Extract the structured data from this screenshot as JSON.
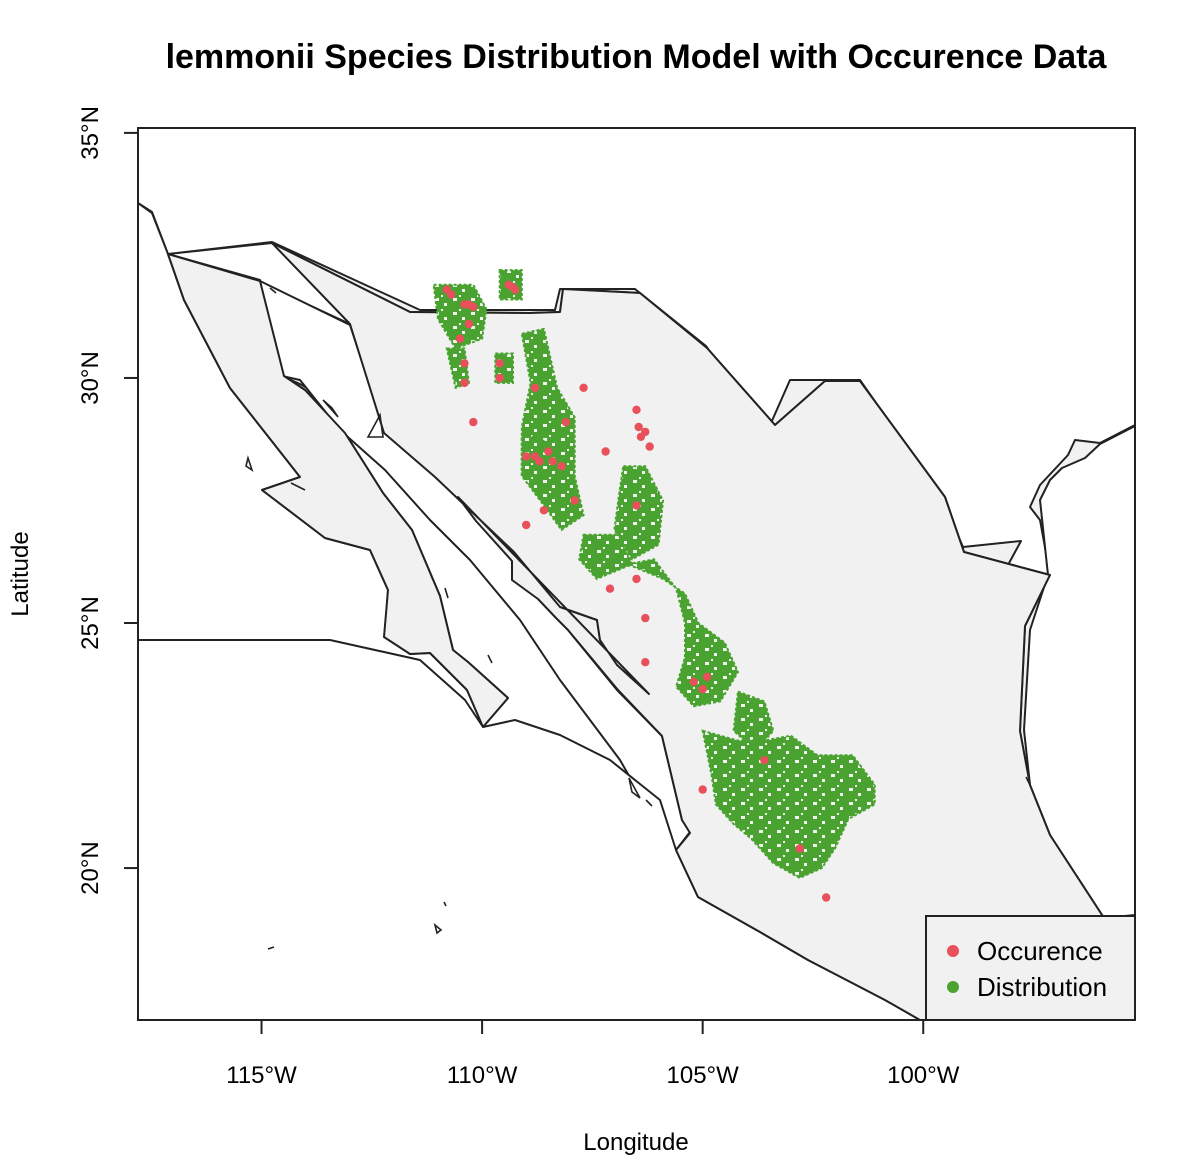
{
  "title": "lemmonii Species Distribution Model with Occurence Data",
  "x_axis": {
    "label": "Longitude",
    "ticks": [
      {
        "lon": -115,
        "label": "115°W"
      },
      {
        "lon": -110,
        "label": "110°W"
      },
      {
        "lon": -105,
        "label": "105°W"
      },
      {
        "lon": -100,
        "label": "100°W"
      }
    ]
  },
  "y_axis": {
    "label": "Latitude",
    "ticks": [
      {
        "lat": 20,
        "label": "20°N"
      },
      {
        "lat": 25,
        "label": "25°N"
      },
      {
        "lat": 30,
        "label": "30°N"
      },
      {
        "lat": 35,
        "label": "35°N"
      }
    ]
  },
  "legend": {
    "position": "bottom-right",
    "items": [
      {
        "label": "Occurence",
        "color": "#e8505b"
      },
      {
        "label": "Distribution",
        "color": "#4aa330"
      }
    ]
  },
  "colors": {
    "land": "#f1f1f1",
    "outline": "#222222",
    "occurrence": "#e8505b",
    "distribution": "#4aa330"
  },
  "chart_data": {
    "type": "scatter",
    "xlim": [
      -117.8,
      -95.2
    ],
    "ylim": [
      16.9,
      35.1
    ],
    "series": [
      {
        "name": "Occurence",
        "points": [
          [
            -110.8,
            31.8
          ],
          [
            -110.7,
            31.7
          ],
          [
            -110.4,
            31.5
          ],
          [
            -110.3,
            31.5
          ],
          [
            -110.2,
            31.45
          ],
          [
            -109.4,
            31.9
          ],
          [
            -109.3,
            31.85
          ],
          [
            -109.25,
            31.8
          ],
          [
            -110.3,
            31.1
          ],
          [
            -110.5,
            30.8
          ],
          [
            -110.4,
            30.3
          ],
          [
            -110.4,
            29.9
          ],
          [
            -109.6,
            30.3
          ],
          [
            -109.6,
            30.0
          ],
          [
            -110.2,
            29.1
          ],
          [
            -108.8,
            29.8
          ],
          [
            -107.7,
            29.8
          ],
          [
            -109.0,
            28.4
          ],
          [
            -108.8,
            28.4
          ],
          [
            -108.7,
            28.3
          ],
          [
            -108.5,
            28.5
          ],
          [
            -108.4,
            28.3
          ],
          [
            -108.2,
            28.2
          ],
          [
            -108.1,
            29.1
          ],
          [
            -107.9,
            27.5
          ],
          [
            -108.6,
            27.3
          ],
          [
            -109.0,
            27.0
          ],
          [
            -107.2,
            28.5
          ],
          [
            -106.5,
            29.35
          ],
          [
            -106.45,
            29.0
          ],
          [
            -106.4,
            28.8
          ],
          [
            -106.3,
            28.9
          ],
          [
            -106.2,
            28.6
          ],
          [
            -106.5,
            27.4
          ],
          [
            -107.1,
            25.7
          ],
          [
            -106.5,
            25.9
          ],
          [
            -106.3,
            25.1
          ],
          [
            -106.3,
            24.2
          ],
          [
            -105.2,
            23.8
          ],
          [
            -105.0,
            23.65
          ],
          [
            -104.9,
            23.9
          ],
          [
            -105.0,
            21.6
          ],
          [
            -103.6,
            22.2
          ],
          [
            -102.8,
            20.4
          ],
          [
            -102.2,
            19.4
          ]
        ]
      },
      {
        "name": "Distribution",
        "regions": [
          [
            [
              -111.1,
              31.9
            ],
            [
              -110.2,
              31.9
            ],
            [
              -109.9,
              31.4
            ],
            [
              -110.0,
              30.8
            ],
            [
              -110.6,
              30.6
            ],
            [
              -111.0,
              31.2
            ]
          ],
          [
            [
              -109.6,
              32.2
            ],
            [
              -109.1,
              32.2
            ],
            [
              -109.1,
              31.6
            ],
            [
              -109.6,
              31.6
            ]
          ],
          [
            [
              -110.8,
              30.6
            ],
            [
              -110.4,
              30.6
            ],
            [
              -110.3,
              29.9
            ],
            [
              -110.6,
              29.8
            ]
          ],
          [
            [
              -109.7,
              30.5
            ],
            [
              -109.3,
              30.5
            ],
            [
              -109.3,
              29.9
            ],
            [
              -109.7,
              29.9
            ]
          ],
          [
            [
              -109.1,
              30.9
            ],
            [
              -108.6,
              31.0
            ],
            [
              -108.3,
              29.8
            ],
            [
              -107.9,
              29.2
            ],
            [
              -107.9,
              28.0
            ],
            [
              -107.7,
              27.2
            ],
            [
              -108.2,
              26.9
            ],
            [
              -108.6,
              27.4
            ],
            [
              -109.1,
              28.0
            ],
            [
              -109.1,
              29.0
            ],
            [
              -108.9,
              29.9
            ]
          ],
          [
            [
              -109.1,
              28.8
            ],
            [
              -108.6,
              28.8
            ],
            [
              -108.7,
              27.9
            ],
            [
              -109.1,
              28.0
            ]
          ],
          [
            [
              -106.8,
              28.2
            ],
            [
              -106.3,
              28.2
            ],
            [
              -105.9,
              27.5
            ],
            [
              -106.0,
              26.6
            ],
            [
              -106.6,
              26.3
            ],
            [
              -107.0,
              26.9
            ],
            [
              -106.9,
              27.6
            ]
          ],
          [
            [
              -107.7,
              26.8
            ],
            [
              -106.9,
              26.8
            ],
            [
              -106.6,
              26.2
            ],
            [
              -107.4,
              25.9
            ],
            [
              -107.8,
              26.3
            ]
          ],
          [
            [
              -106.7,
              26.2
            ],
            [
              -106.1,
              26.3
            ],
            [
              -105.6,
              25.7
            ],
            [
              -105.4,
              25.0
            ],
            [
              -105.4,
              24.3
            ],
            [
              -105.6,
              23.7
            ],
            [
              -105.2,
              23.3
            ],
            [
              -104.6,
              23.4
            ],
            [
              -104.2,
              24.0
            ],
            [
              -104.5,
              24.6
            ],
            [
              -105.1,
              25.0
            ],
            [
              -105.4,
              25.6
            ],
            [
              -105.9,
              25.9
            ]
          ],
          [
            [
              -104.2,
              23.6
            ],
            [
              -103.6,
              23.4
            ],
            [
              -103.4,
              22.8
            ],
            [
              -103.8,
              22.4
            ],
            [
              -104.3,
              22.8
            ]
          ],
          [
            [
              -105.0,
              22.8
            ],
            [
              -104.2,
              22.6
            ],
            [
              -103.6,
              22.6
            ],
            [
              -103.0,
              22.7
            ],
            [
              -102.4,
              22.3
            ],
            [
              -101.6,
              22.3
            ],
            [
              -101.1,
              21.7
            ],
            [
              -101.1,
              21.3
            ],
            [
              -101.7,
              21.0
            ],
            [
              -102.0,
              20.4
            ],
            [
              -102.3,
              20.0
            ],
            [
              -102.8,
              19.8
            ],
            [
              -103.4,
              20.1
            ],
            [
              -103.9,
              20.6
            ],
            [
              -104.3,
              20.9
            ],
            [
              -104.7,
              21.3
            ],
            [
              -104.8,
              21.9
            ]
          ]
        ]
      }
    ]
  }
}
